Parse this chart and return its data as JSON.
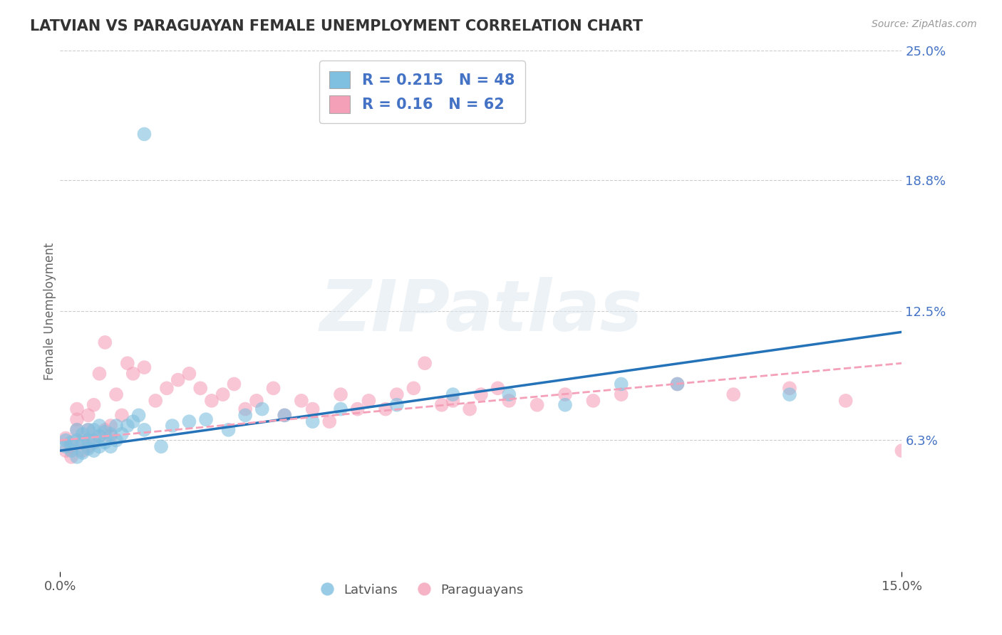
{
  "title": "LATVIAN VS PARAGUAYAN FEMALE UNEMPLOYMENT CORRELATION CHART",
  "source": "Source: ZipAtlas.com",
  "ylabel": "Female Unemployment",
  "xlim": [
    0,
    0.15
  ],
  "ylim": [
    0,
    0.25
  ],
  "yticks": [
    0.063,
    0.125,
    0.188,
    0.25
  ],
  "ytick_labels": [
    "6.3%",
    "12.5%",
    "18.8%",
    "25.0%"
  ],
  "xticks": [
    0.0,
    0.05,
    0.1,
    0.15
  ],
  "xtick_labels": [
    "0.0%",
    "",
    "",
    "15.0%"
  ],
  "latvian_color": "#7fbfdf",
  "paraguayan_color": "#f4a0b8",
  "latvian_R": 0.215,
  "latvian_N": 48,
  "paraguayan_R": 0.16,
  "paraguayan_N": 62,
  "background_color": "#ffffff",
  "grid_color": "#cccccc",
  "watermark": "ZIPatlas",
  "latvian_scatter_x": [
    0.001,
    0.001,
    0.002,
    0.002,
    0.003,
    0.003,
    0.003,
    0.004,
    0.004,
    0.004,
    0.005,
    0.005,
    0.005,
    0.006,
    0.006,
    0.006,
    0.007,
    0.007,
    0.007,
    0.008,
    0.008,
    0.009,
    0.009,
    0.01,
    0.01,
    0.011,
    0.012,
    0.013,
    0.014,
    0.015,
    0.018,
    0.02,
    0.023,
    0.026,
    0.03,
    0.033,
    0.036,
    0.04,
    0.045,
    0.05,
    0.06,
    0.07,
    0.08,
    0.09,
    0.1,
    0.11,
    0.13,
    0.015
  ],
  "latvian_scatter_y": [
    0.06,
    0.063,
    0.058,
    0.062,
    0.055,
    0.063,
    0.068,
    0.057,
    0.062,
    0.066,
    0.059,
    0.063,
    0.068,
    0.058,
    0.063,
    0.068,
    0.06,
    0.065,
    0.07,
    0.062,
    0.067,
    0.06,
    0.066,
    0.063,
    0.07,
    0.066,
    0.07,
    0.072,
    0.075,
    0.068,
    0.06,
    0.07,
    0.072,
    0.073,
    0.068,
    0.075,
    0.078,
    0.075,
    0.072,
    0.078,
    0.08,
    0.085,
    0.085,
    0.08,
    0.09,
    0.09,
    0.085,
    0.21
  ],
  "paraguayan_scatter_x": [
    0.001,
    0.001,
    0.002,
    0.002,
    0.003,
    0.003,
    0.003,
    0.004,
    0.004,
    0.005,
    0.005,
    0.005,
    0.006,
    0.006,
    0.007,
    0.007,
    0.008,
    0.008,
    0.009,
    0.009,
    0.01,
    0.011,
    0.012,
    0.013,
    0.015,
    0.017,
    0.019,
    0.021,
    0.023,
    0.025,
    0.027,
    0.029,
    0.031,
    0.033,
    0.035,
    0.038,
    0.04,
    0.043,
    0.045,
    0.048,
    0.05,
    0.053,
    0.055,
    0.058,
    0.06,
    0.063,
    0.065,
    0.068,
    0.07,
    0.073,
    0.075,
    0.078,
    0.08,
    0.085,
    0.09,
    0.095,
    0.1,
    0.11,
    0.12,
    0.13,
    0.14,
    0.15
  ],
  "paraguayan_scatter_y": [
    0.058,
    0.064,
    0.06,
    0.055,
    0.068,
    0.073,
    0.078,
    0.058,
    0.063,
    0.06,
    0.075,
    0.068,
    0.062,
    0.08,
    0.065,
    0.095,
    0.068,
    0.11,
    0.07,
    0.065,
    0.085,
    0.075,
    0.1,
    0.095,
    0.098,
    0.082,
    0.088,
    0.092,
    0.095,
    0.088,
    0.082,
    0.085,
    0.09,
    0.078,
    0.082,
    0.088,
    0.075,
    0.082,
    0.078,
    0.072,
    0.085,
    0.078,
    0.082,
    0.078,
    0.085,
    0.088,
    0.1,
    0.08,
    0.082,
    0.078,
    0.085,
    0.088,
    0.082,
    0.08,
    0.085,
    0.082,
    0.085,
    0.09,
    0.085,
    0.088,
    0.082,
    0.058
  ],
  "trend_latvian_y0": 0.058,
  "trend_latvian_y1": 0.115,
  "trend_paraguayan_y0": 0.063,
  "trend_paraguayan_y1": 0.1
}
